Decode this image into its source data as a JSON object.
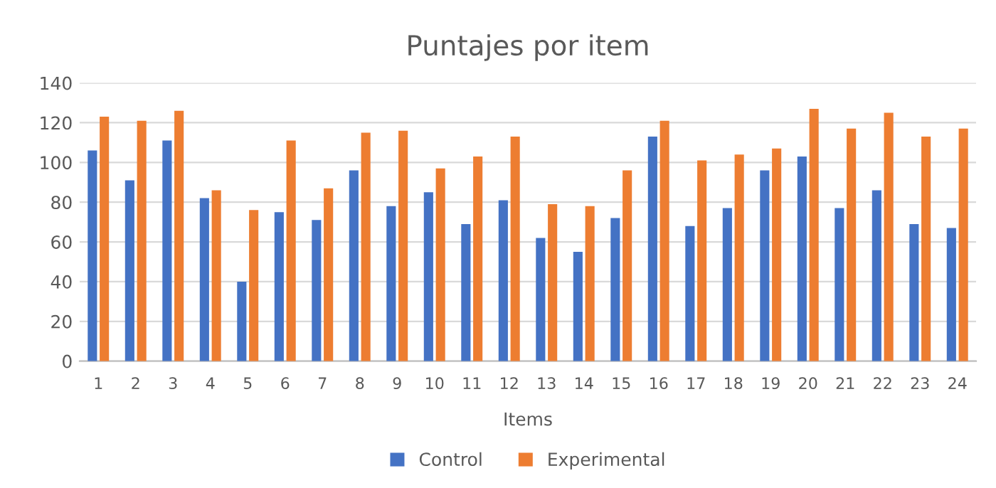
{
  "chart_data": {
    "type": "bar",
    "title": "Puntajes por item",
    "xlabel": "Items",
    "categories": [
      "1",
      "2",
      "3",
      "4",
      "5",
      "6",
      "7",
      "8",
      "9",
      "10",
      "11",
      "12",
      "13",
      "14",
      "15",
      "16",
      "17",
      "18",
      "19",
      "20",
      "21",
      "22",
      "23",
      "24"
    ],
    "series": [
      {
        "name": "Control",
        "color": "#4472c4",
        "values": [
          106,
          91,
          111,
          82,
          40,
          75,
          71,
          96,
          78,
          85,
          69,
          81,
          62,
          55,
          72,
          113,
          68,
          77,
          96,
          103,
          77,
          86,
          69,
          67
        ]
      },
      {
        "name": "Experimental",
        "color": "#ed7d31",
        "values": [
          123,
          121,
          126,
          86,
          76,
          111,
          87,
          115,
          116,
          97,
          103,
          113,
          79,
          78,
          96,
          121,
          101,
          104,
          107,
          127,
          117,
          125,
          113,
          117
        ]
      }
    ],
    "ylim": [
      0,
      140
    ],
    "yticks": [
      0,
      20,
      40,
      60,
      80,
      100,
      120,
      140
    ],
    "grid": "y",
    "legend": "bottom"
  }
}
